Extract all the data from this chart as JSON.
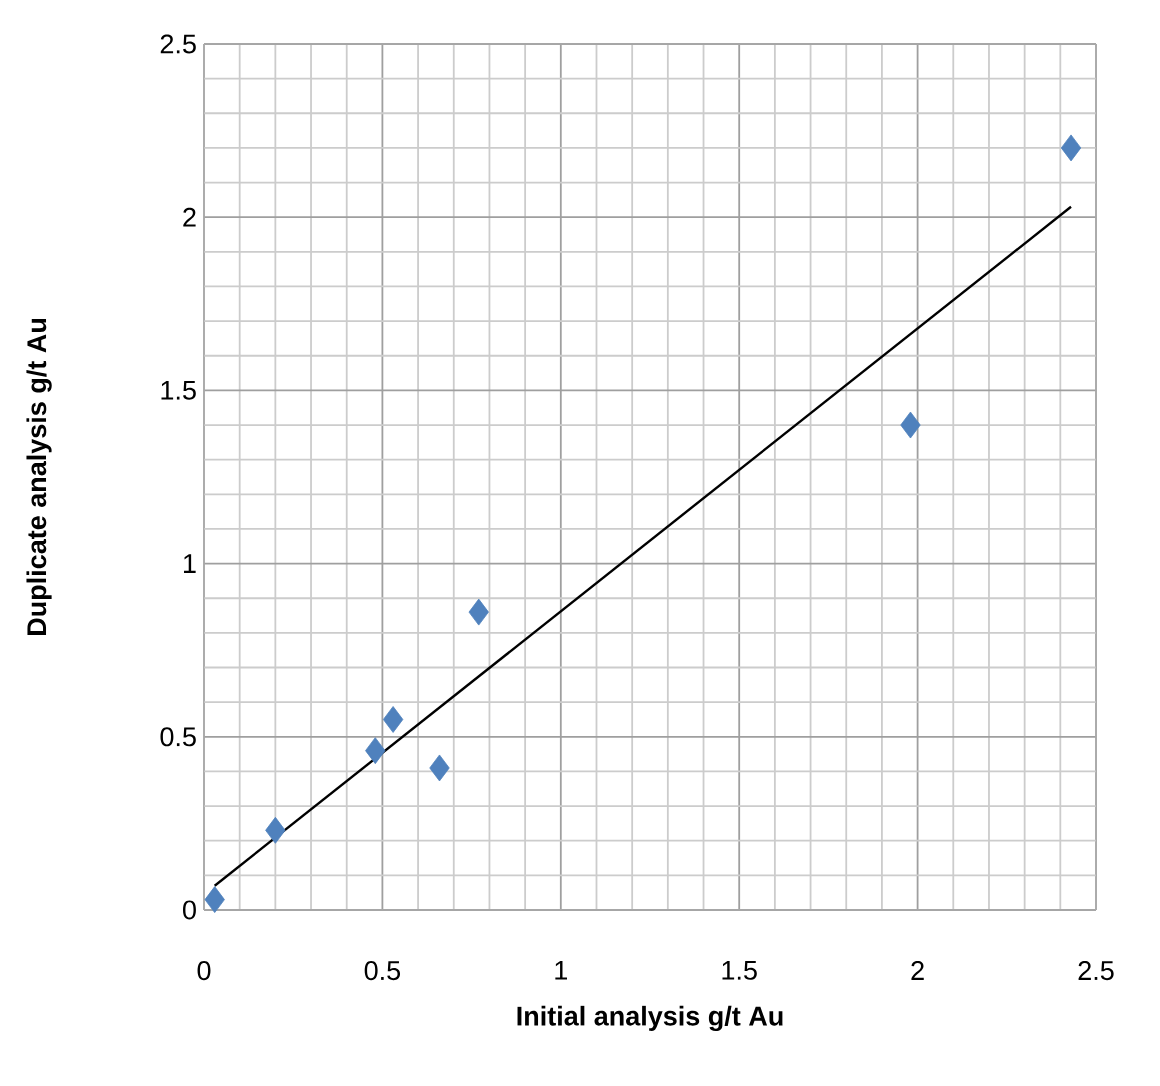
{
  "chart_data": {
    "type": "scatter",
    "xlabel": "Initial analysis g/t Au",
    "ylabel": "Duplicate analysis g/t Au",
    "xlim": [
      0,
      2.5
    ],
    "ylim": [
      0,
      2.5
    ],
    "xticks": [
      0,
      0.5,
      1,
      1.5,
      2,
      2.5
    ],
    "yticks": [
      0,
      0.5,
      1,
      1.5,
      2,
      2.5
    ],
    "grid": true,
    "marker": "diamond",
    "series": [
      {
        "color": "#4f81bd",
        "x": [
          0.03,
          0.2,
          0.48,
          0.53,
          0.66,
          0.77,
          1.98,
          2.43
        ],
        "values": [
          0.03,
          0.23,
          0.46,
          0.55,
          0.41,
          0.86,
          1.4,
          2.2
        ]
      },
      {
        "type": "line",
        "color": "#000000",
        "marker": "none",
        "line_style": "solid",
        "x": [
          0.03,
          2.43
        ],
        "values": [
          0.07,
          2.03
        ]
      }
    ]
  }
}
